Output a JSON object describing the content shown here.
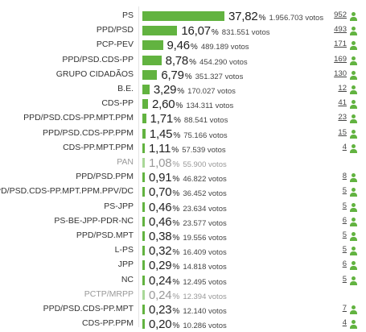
{
  "chart_data": {
    "type": "bar",
    "orientation": "horizontal",
    "value_suffix": "%",
    "votes_suffix": "votos",
    "rows": [
      {
        "party": "PS",
        "pct": 37.82,
        "pct_label": "37,82",
        "votes": "1.956.703",
        "seats": "952",
        "muted": false
      },
      {
        "party": "PPD/PSD",
        "pct": 16.07,
        "pct_label": "16,07",
        "votes": "831.551",
        "seats": "493",
        "muted": false
      },
      {
        "party": "PCP-PEV",
        "pct": 9.46,
        "pct_label": "9,46",
        "votes": "489.189",
        "seats": "171",
        "muted": false
      },
      {
        "party": "PPD/PSD.CDS-PP",
        "pct": 8.78,
        "pct_label": "8,78",
        "votes": "454.290",
        "seats": "169",
        "muted": false
      },
      {
        "party": "GRUPO CIDADÃOS",
        "pct": 6.79,
        "pct_label": "6,79",
        "votes": "351.327",
        "seats": "130",
        "muted": false
      },
      {
        "party": "B.E.",
        "pct": 3.29,
        "pct_label": "3,29",
        "votes": "170.027",
        "seats": "12",
        "muted": false
      },
      {
        "party": "CDS-PP",
        "pct": 2.6,
        "pct_label": "2,60",
        "votes": "134.311",
        "seats": "41",
        "muted": false
      },
      {
        "party": "PPD/PSD.CDS-PP.MPT.PPM",
        "pct": 1.71,
        "pct_label": "1,71",
        "votes": "88.541",
        "seats": "23",
        "muted": false
      },
      {
        "party": "PPD/PSD.CDS-PP.PPM",
        "pct": 1.45,
        "pct_label": "1,45",
        "votes": "75.166",
        "seats": "15",
        "muted": false
      },
      {
        "party": "CDS-PP.MPT.PPM",
        "pct": 1.11,
        "pct_label": "1,11",
        "votes": "57.539",
        "seats": "4",
        "muted": false
      },
      {
        "party": "PAN",
        "pct": 1.08,
        "pct_label": "1,08",
        "votes": "55.900",
        "seats": "",
        "muted": true
      },
      {
        "party": "PPD/PSD.PPM",
        "pct": 0.91,
        "pct_label": "0,91",
        "votes": "46.822",
        "seats": "8",
        "muted": false
      },
      {
        "party": "PPD/PSD.CDS-PP.MPT.PPM.PPV/DC",
        "pct": 0.7,
        "pct_label": "0,70",
        "votes": "36.452",
        "seats": "5",
        "muted": false
      },
      {
        "party": "PS-JPP",
        "pct": 0.46,
        "pct_label": "0,46",
        "votes": "23.634",
        "seats": "5",
        "muted": false
      },
      {
        "party": "PS-BE-JPP-PDR-NC",
        "pct": 0.46,
        "pct_label": "0,46",
        "votes": "23.577",
        "seats": "6",
        "muted": false
      },
      {
        "party": "PPD/PSD.MPT",
        "pct": 0.38,
        "pct_label": "0,38",
        "votes": "19.556",
        "seats": "5",
        "muted": false
      },
      {
        "party": "L-PS",
        "pct": 0.32,
        "pct_label": "0,32",
        "votes": "16.409",
        "seats": "5",
        "muted": false
      },
      {
        "party": "JPP",
        "pct": 0.29,
        "pct_label": "0,29",
        "votes": "14.818",
        "seats": "6",
        "muted": false
      },
      {
        "party": "NC",
        "pct": 0.24,
        "pct_label": "0,24",
        "votes": "12.495",
        "seats": "5",
        "muted": false
      },
      {
        "party": "PCTP/MRPP",
        "pct": 0.24,
        "pct_label": "0,24",
        "votes": "12.394",
        "seats": "",
        "muted": true
      },
      {
        "party": "PPD/PSD.CDS-PP.MPT",
        "pct": 0.23,
        "pct_label": "0,23",
        "votes": "12.140",
        "seats": "7",
        "muted": false
      },
      {
        "party": "CDS-PP.PPM",
        "pct": 0.2,
        "pct_label": "0,20",
        "votes": "10.286",
        "seats": "4",
        "muted": false
      }
    ],
    "colors": {
      "bar": "#62b340",
      "bar_muted": "#a9d898",
      "icon": "#62b340"
    },
    "icons": {
      "seats": "person-icon"
    }
  }
}
